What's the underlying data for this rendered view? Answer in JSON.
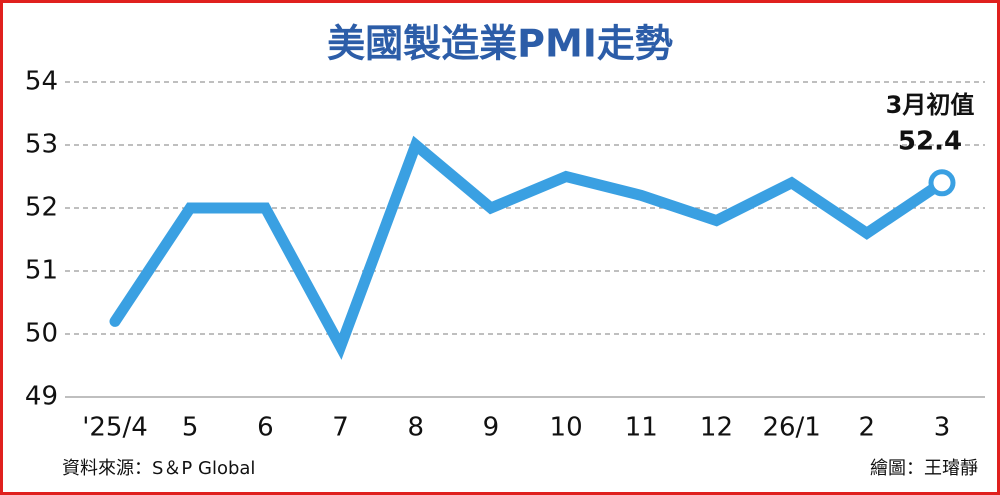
{
  "chart_data": {
    "type": "line",
    "title": "美國製造業PMI走勢",
    "categories": [
      "'25/4",
      "5",
      "6",
      "7",
      "8",
      "9",
      "10",
      "11",
      "12",
      "26/1",
      "2",
      "3"
    ],
    "values": [
      50.2,
      52.0,
      52.0,
      49.8,
      53.0,
      52.0,
      52.5,
      52.2,
      51.8,
      52.4,
      51.6,
      52.4
    ],
    "color": "#3aa0e2",
    "ylim": [
      49,
      54
    ],
    "yticks": [
      49,
      50,
      51,
      52,
      53,
      54
    ],
    "grid": true,
    "annotation": "3月初值",
    "source": "資料來源：S＆P Global",
    "credit": "繪圖：王璿靜"
  }
}
